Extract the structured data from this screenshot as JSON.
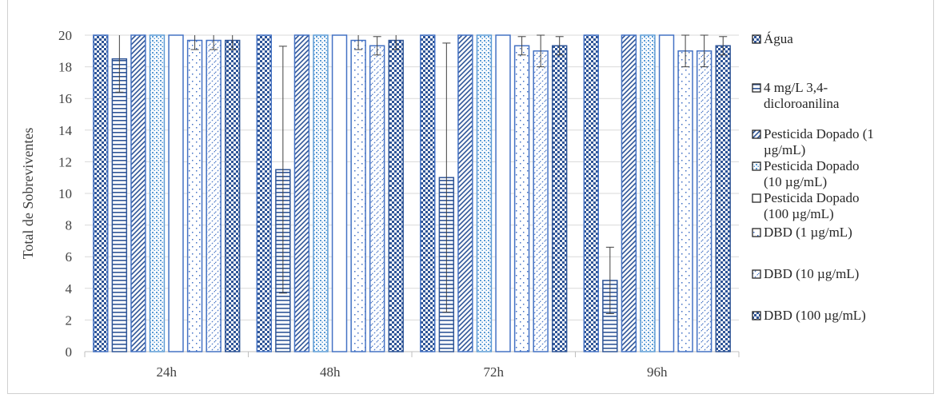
{
  "chart_data": {
    "type": "bar",
    "title": "",
    "xlabel": "",
    "ylabel": "Total de Sobreviventes",
    "ylim": [
      0,
      20
    ],
    "yticks": [
      0,
      2,
      4,
      6,
      8,
      10,
      12,
      14,
      16,
      18,
      20
    ],
    "grid": true,
    "legend_position": "right",
    "categories": [
      "24h",
      "48h",
      "72h",
      "96h"
    ],
    "series": [
      {
        "name": "Água",
        "values": [
          20,
          20,
          20,
          20
        ],
        "errors": [
          0,
          0,
          0,
          0
        ],
        "pattern": "check",
        "color": "#4472c4"
      },
      {
        "name": "4 mg/L 3,4-dicloroanilina",
        "values": [
          18.5,
          11.5,
          11,
          4.5
        ],
        "errors": [
          2.1,
          7.8,
          8.5,
          2.1
        ],
        "pattern": "hlines",
        "color": "#2f5597"
      },
      {
        "name": "Pesticida Dopado (1 µg/mL)",
        "values": [
          20,
          20,
          20,
          20
        ],
        "errors": [
          0,
          0,
          0,
          0
        ],
        "pattern": "diag",
        "color": "#4472c4"
      },
      {
        "name": "Pesticida Dopado (10 µg/mL)",
        "values": [
          20,
          20,
          20,
          20
        ],
        "errors": [
          0,
          0,
          0,
          0
        ],
        "pattern": "dots",
        "color": "#5b9bd5"
      },
      {
        "name": "Pesticida Dopado (100 µg/mL)",
        "values": [
          20,
          20,
          20,
          20
        ],
        "errors": [
          0,
          0,
          0,
          0
        ],
        "pattern": "none",
        "color": "#4472c4"
      },
      {
        "name": "DBD (1 µg/mL)",
        "values": [
          19.67,
          19.67,
          19.33,
          19
        ],
        "errors": [
          0.58,
          0.58,
          0.58,
          1
        ],
        "pattern": "sparse",
        "color": "#4472c4"
      },
      {
        "name": "DBD (10 µg/mL)",
        "values": [
          19.67,
          19.33,
          19,
          19
        ],
        "errors": [
          0.58,
          0.58,
          1,
          1
        ],
        "pattern": "diag2",
        "color": "#4472c4"
      },
      {
        "name": "DBD (100 µg/mL)",
        "values": [
          19.67,
          19.67,
          19.33,
          19.33
        ],
        "errors": [
          0.58,
          0.58,
          0.58,
          0.58
        ],
        "pattern": "check",
        "color": "#2f5597"
      }
    ],
    "legend_labels": [
      [
        "Água"
      ],
      [
        "4 mg/L 3,4-",
        "dicloroanilina"
      ],
      [
        "Pesticida Dopado (1",
        "µg/mL)"
      ],
      [
        "Pesticida Dopado",
        "(10 µg/mL)"
      ],
      [
        "Pesticida Dopado",
        "(100 µg/mL)"
      ],
      [
        "DBD (1 µg/mL)"
      ],
      [
        "DBD (10 µg/mL)"
      ],
      [
        "DBD (100 µg/mL)"
      ]
    ]
  }
}
